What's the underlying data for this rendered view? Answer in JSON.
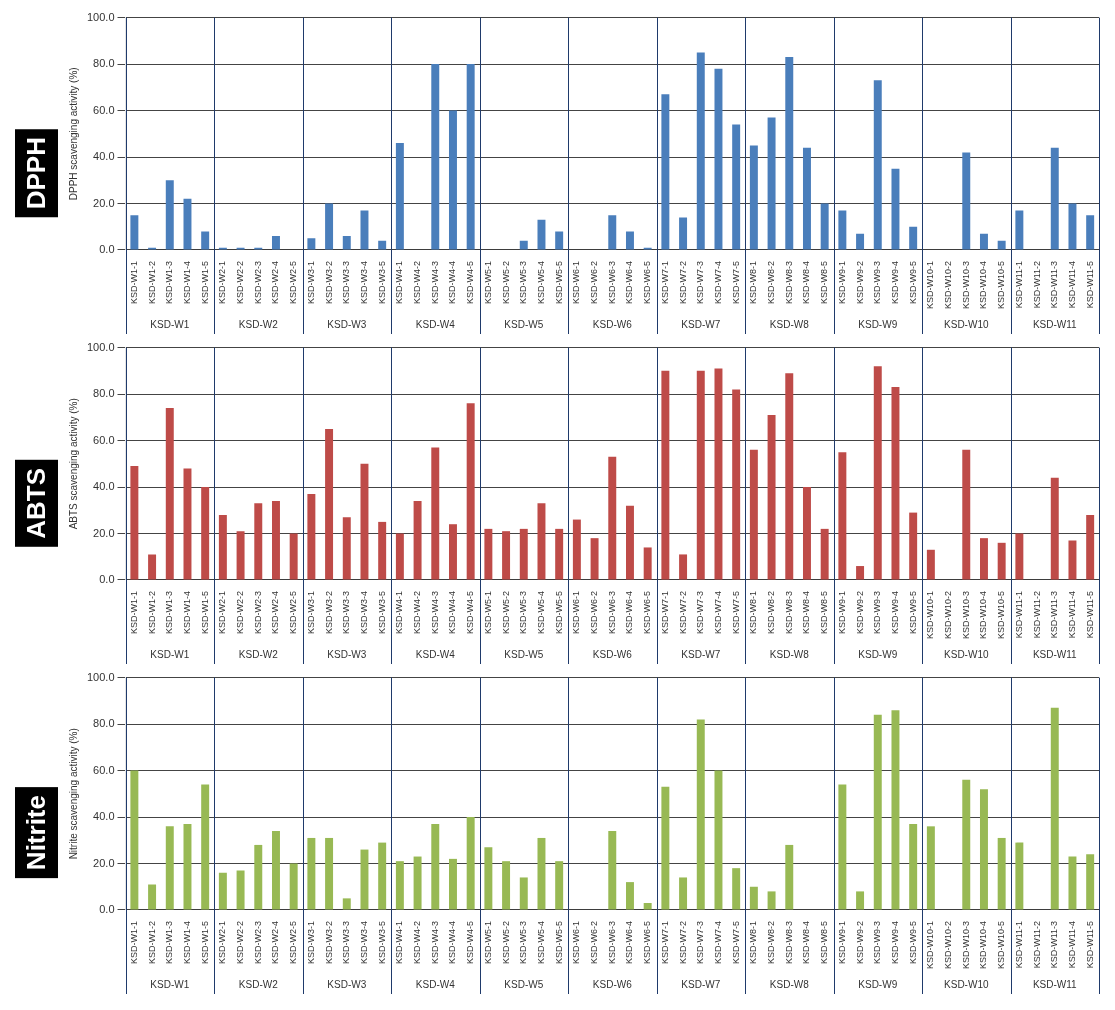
{
  "chart_data": [
    {
      "type": "bar",
      "title": "DPPH",
      "ylabel": "DPPH scavenging activity (%)",
      "categories": [
        "KSD-W1-1",
        "KSD-W1-2",
        "KSD-W1-3",
        "KSD-W1-4",
        "KSD-W1-5",
        "KSD-W2-1",
        "KSD-W2-2",
        "KSD-W2-3",
        "KSD-W2-4",
        "KSD-W2-5",
        "KSD-W3-1",
        "KSD-W3-2",
        "KSD-W3-3",
        "KSD-W3-4",
        "KSD-W3-5",
        "KSD-W4-1",
        "KSD-W4-2",
        "KSD-W4-3",
        "KSD-W4-4",
        "KSD-W4-5",
        "KSD-W5-1",
        "KSD-W5-2",
        "KSD-W5-3",
        "KSD-W5-4",
        "KSD-W5-5",
        "KSD-W6-1",
        "KSD-W6-2",
        "KSD-W6-3",
        "KSD-W6-4",
        "KSD-W6-5",
        "KSD-W7-1",
        "KSD-W7-2",
        "KSD-W7-3",
        "KSD-W7-4",
        "KSD-W7-5",
        "KSD-W8-1",
        "KSD-W8-2",
        "KSD-W8-3",
        "KSD-W8-4",
        "KSD-W8-5",
        "KSD-W9-1",
        "KSD-W9-2",
        "KSD-W9-3",
        "KSD-W9-4",
        "KSD-W9-5",
        "KSD-W10-1",
        "KSD-W10-2",
        "KSD-W10-3",
        "KSD-W10-4",
        "KSD-W10-5",
        "KSD-W11-1",
        "KSD-W11-2",
        "KSD-W11-3",
        "KSD-W11-4",
        "KSD-W11-5"
      ],
      "values": [
        15,
        1,
        30,
        22,
        8,
        1,
        1,
        1,
        6,
        0,
        5,
        20,
        6,
        17,
        4,
        46,
        0,
        80,
        60,
        80,
        0,
        0,
        4,
        13,
        8,
        0,
        0,
        15,
        8,
        1,
        67,
        14,
        85,
        78,
        54,
        45,
        57,
        83,
        44,
        20,
        17,
        7,
        73,
        35,
        10,
        0,
        0,
        42,
        7,
        4,
        17,
        0,
        44,
        20,
        15
      ],
      "color": "#4a7ebb",
      "ylim": [
        0,
        100
      ],
      "yticks": [
        {
          "value": 0,
          "label": "0.0"
        },
        {
          "value": 20,
          "label": "20.0"
        },
        {
          "value": 40,
          "label": "40.0"
        },
        {
          "value": 60,
          "label": "60.0"
        },
        {
          "value": 80,
          "label": "80.0"
        },
        {
          "value": 100,
          "label": "100.0"
        }
      ],
      "grid": "y",
      "legend": false,
      "annotations": [
        "KSD-W1",
        "KSD-W2",
        "KSD-W3",
        "KSD-W4",
        "KSD-W5",
        "KSD-W6",
        "KSD-W7",
        "KSD-W8",
        "KSD-W9",
        "KSD-W10",
        "KSD-W11"
      ]
    },
    {
      "type": "bar",
      "title": "ABTS",
      "ylabel": "ABTS scavenging activity (%)",
      "categories": [
        "KSD-W1-1",
        "KSD-W1-2",
        "KSD-W1-3",
        "KSD-W1-4",
        "KSD-W1-5",
        "KSD-W2-1",
        "KSD-W2-2",
        "KSD-W2-3",
        "KSD-W2-4",
        "KSD-W2-5",
        "KSD-W3-1",
        "KSD-W3-2",
        "KSD-W3-3",
        "KSD-W3-4",
        "KSD-W3-5",
        "KSD-W4-1",
        "KSD-W4-2",
        "KSD-W4-3",
        "KSD-W4-4",
        "KSD-W4-5",
        "KSD-W5-1",
        "KSD-W5-2",
        "KSD-W5-3",
        "KSD-W5-4",
        "KSD-W5-5",
        "KSD-W6-1",
        "KSD-W6-2",
        "KSD-W6-3",
        "KSD-W6-4",
        "KSD-W6-5",
        "KSD-W7-1",
        "KSD-W7-2",
        "KSD-W7-3",
        "KSD-W7-4",
        "KSD-W7-5",
        "KSD-W8-1",
        "KSD-W8-2",
        "KSD-W8-3",
        "KSD-W8-4",
        "KSD-W8-5",
        "KSD-W9-1",
        "KSD-W9-2",
        "KSD-W9-3",
        "KSD-W9-4",
        "KSD-W9-5",
        "KSD-W10-1",
        "KSD-W10-2",
        "KSD-W10-3",
        "KSD-W10-4",
        "KSD-W10-5",
        "KSD-W11-1",
        "KSD-W11-2",
        "KSD-W11-3",
        "KSD-W11-4",
        "KSD-W11-5"
      ],
      "values": [
        49,
        11,
        74,
        48,
        40,
        28,
        21,
        33,
        34,
        20,
        37,
        65,
        27,
        50,
        25,
        20,
        34,
        57,
        24,
        76,
        22,
        21,
        22,
        33,
        22,
        26,
        18,
        53,
        32,
        14,
        90,
        11,
        90,
        91,
        82,
        56,
        71,
        89,
        40,
        22,
        55,
        6,
        92,
        83,
        29,
        13,
        0,
        56,
        18,
        16,
        20,
        0,
        44,
        17,
        28
      ],
      "color": "#be4b48",
      "ylim": [
        0,
        100
      ],
      "yticks": [
        {
          "value": 0,
          "label": "0.0"
        },
        {
          "value": 20,
          "label": "20.0"
        },
        {
          "value": 40,
          "label": "40.0"
        },
        {
          "value": 60,
          "label": "60.0"
        },
        {
          "value": 80,
          "label": "80.0"
        },
        {
          "value": 100,
          "label": "100.0"
        }
      ],
      "grid": "y",
      "legend": false,
      "annotations": [
        "KSD-W1",
        "KSD-W2",
        "KSD-W3",
        "KSD-W4",
        "KSD-W5",
        "KSD-W6",
        "KSD-W7",
        "KSD-W8",
        "KSD-W9",
        "KSD-W10",
        "KSD-W11"
      ]
    },
    {
      "type": "bar",
      "title": "Nitrite",
      "ylabel": "Nitrite scavenging activity (%)",
      "categories": [
        "KSD-W1-1",
        "KSD-W1-2",
        "KSD-W1-3",
        "KSD-W1-4",
        "KSD-W1-5",
        "KSD-W2-1",
        "KSD-W2-2",
        "KSD-W2-3",
        "KSD-W2-4",
        "KSD-W2-5",
        "KSD-W3-1",
        "KSD-W3-2",
        "KSD-W3-3",
        "KSD-W3-4",
        "KSD-W3-5",
        "KSD-W4-1",
        "KSD-W4-2",
        "KSD-W4-3",
        "KSD-W4-4",
        "KSD-W4-5",
        "KSD-W5-1",
        "KSD-W5-2",
        "KSD-W5-3",
        "KSD-W5-4",
        "KSD-W5-5",
        "KSD-W6-1",
        "KSD-W6-2",
        "KSD-W6-3",
        "KSD-W6-4",
        "KSD-W6-5",
        "KSD-W7-1",
        "KSD-W7-2",
        "KSD-W7-3",
        "KSD-W7-4",
        "KSD-W7-5",
        "KSD-W8-1",
        "KSD-W8-2",
        "KSD-W8-3",
        "KSD-W8-4",
        "KSD-W8-5",
        "KSD-W9-1",
        "KSD-W9-2",
        "KSD-W9-3",
        "KSD-W9-4",
        "KSD-W9-5",
        "KSD-W10-1",
        "KSD-W10-2",
        "KSD-W10-3",
        "KSD-W10-4",
        "KSD-W10-5",
        "KSD-W11-1",
        "KSD-W11-2",
        "KSD-W11-3",
        "KSD-W11-4",
        "KSD-W11-5"
      ],
      "values": [
        60,
        11,
        36,
        37,
        54,
        16,
        17,
        28,
        34,
        20,
        31,
        31,
        5,
        26,
        29,
        21,
        23,
        37,
        22,
        40,
        27,
        21,
        14,
        31,
        21,
        0,
        0,
        34,
        12,
        3,
        53,
        14,
        82,
        60,
        18,
        10,
        8,
        28,
        0,
        0,
        54,
        8,
        84,
        86,
        37,
        36,
        0,
        56,
        52,
        31,
        29,
        0,
        87,
        23,
        24
      ],
      "color": "#98b954",
      "ylim": [
        0,
        100
      ],
      "yticks": [
        {
          "value": 0,
          "label": "0.0"
        },
        {
          "value": 20,
          "label": "20.0"
        },
        {
          "value": 40,
          "label": "40.0"
        },
        {
          "value": 60,
          "label": "60.0"
        },
        {
          "value": 80,
          "label": "80.0"
        },
        {
          "value": 100,
          "label": "100.0"
        }
      ],
      "grid": "y",
      "legend": false,
      "annotations": [
        "KSD-W1",
        "KSD-W2",
        "KSD-W3",
        "KSD-W4",
        "KSD-W5",
        "KSD-W6",
        "KSD-W7",
        "KSD-W8",
        "KSD-W9",
        "KSD-W10",
        "KSD-W11"
      ]
    }
  ]
}
